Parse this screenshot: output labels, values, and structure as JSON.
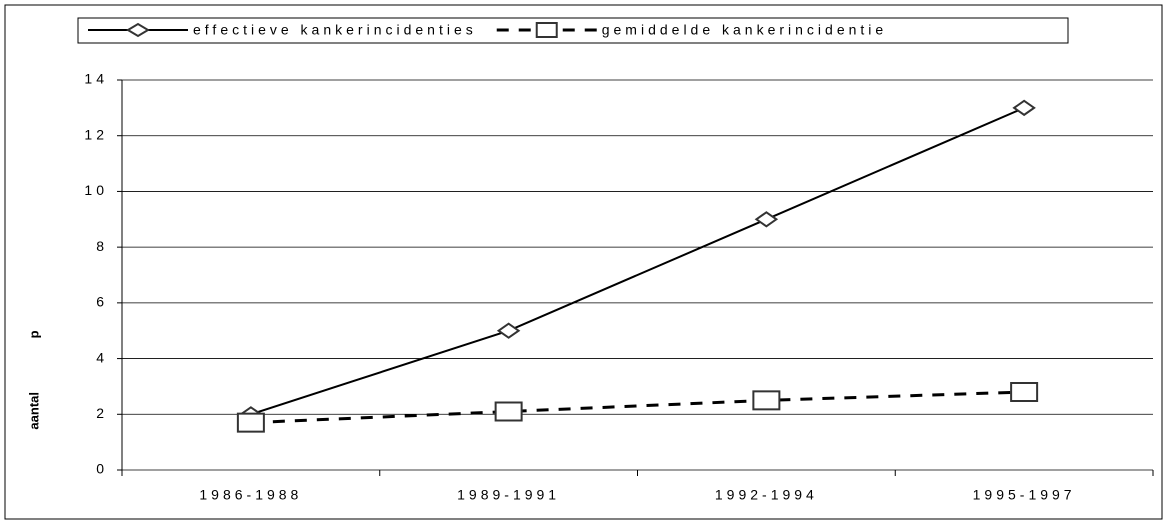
{
  "chart_data": {
    "type": "line",
    "categories": [
      "1986-1988",
      "1989-1991",
      "1992-1994",
      "1995-1997"
    ],
    "series": [
      {
        "name": "effectieve kankerincidenties",
        "color": "#000000",
        "marker": "diamond",
        "dash": false,
        "values": [
          2,
          5,
          9,
          13
        ]
      },
      {
        "name": "gemiddelde kankerincidentie",
        "color": "#000000",
        "marker": "square",
        "dash": true,
        "values": [
          1.7,
          2.1,
          2.5,
          2.8
        ]
      }
    ],
    "ylabel": "aantal p",
    "ylim": [
      0,
      14
    ],
    "yticks": [
      0,
      2,
      4,
      6,
      8,
      10,
      12,
      14
    ],
    "grid": true,
    "legend": "top"
  }
}
